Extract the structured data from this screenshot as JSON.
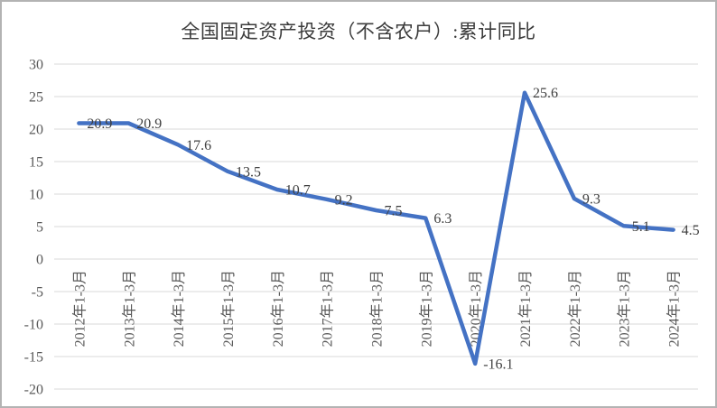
{
  "chart_data": {
    "type": "line",
    "title": "全国固定资产投资（不含农户）:累计同比",
    "categories": [
      "2012年1-3月",
      "2013年1-3月",
      "2014年1-3月",
      "2015年1-3月",
      "2016年1-3月",
      "2017年1-3月",
      "2018年1-3月",
      "2019年1-3月",
      "2020年1-3月",
      "2021年1-3月",
      "2022年1-3月",
      "2023年1-3月",
      "2024年1-3月"
    ],
    "series": [
      {
        "name": "累计同比",
        "values": [
          20.9,
          20.9,
          17.6,
          13.5,
          10.7,
          9.2,
          7.5,
          6.3,
          -16.1,
          25.6,
          9.3,
          5.1,
          4.5
        ]
      }
    ],
    "data_labels_shown": true,
    "xlabel": "",
    "ylabel": "",
    "ylim": [
      -20,
      30
    ],
    "yticks": [
      30,
      25,
      20,
      15,
      10,
      5,
      0,
      -5,
      -10,
      -15,
      -20
    ],
    "grid": true,
    "legend_position": "none",
    "colors": {
      "line": "#4472C4",
      "gridline": "#D9D9D9",
      "axis_labels": "#595959",
      "data_labels": "#404040",
      "title": "#3B3B3B",
      "frame_border": "#B3B3B3"
    }
  }
}
